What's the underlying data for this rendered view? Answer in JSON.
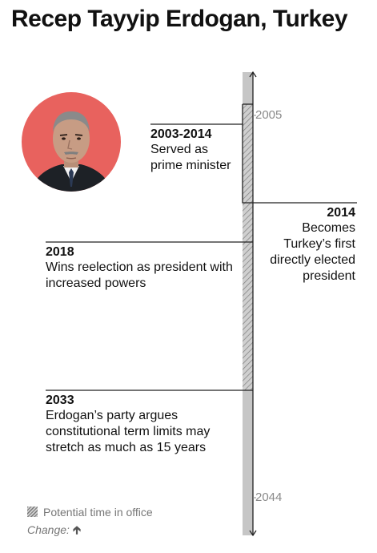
{
  "title": "Recep Tayyip Erdogan, Turkey",
  "colors": {
    "portrait_background": "#e8625e",
    "axis_bar": "#c6c6c6",
    "hatch": "#7d7d7d",
    "text": "#111111",
    "muted": "#8a8a8a"
  },
  "portrait": {
    "icon": "erdogan-portrait"
  },
  "axis": {
    "start_year_label": "2005",
    "end_year_label": "2044"
  },
  "events": [
    {
      "year": "2003-2014",
      "text": "Served as prime minister"
    },
    {
      "year": "2014",
      "text": "Becomes Turkey’s first directly elected president"
    },
    {
      "year": "2018",
      "text": "Wins reelection as president with increased powers"
    },
    {
      "year": "2033",
      "text": "Erdogan’s party argues constitutional term limits may stretch as much as 15 years"
    }
  ],
  "legend": {
    "hatch_label": "Potential time in office",
    "change_label": "Change:",
    "change_icon": "up-arrow-icon"
  }
}
